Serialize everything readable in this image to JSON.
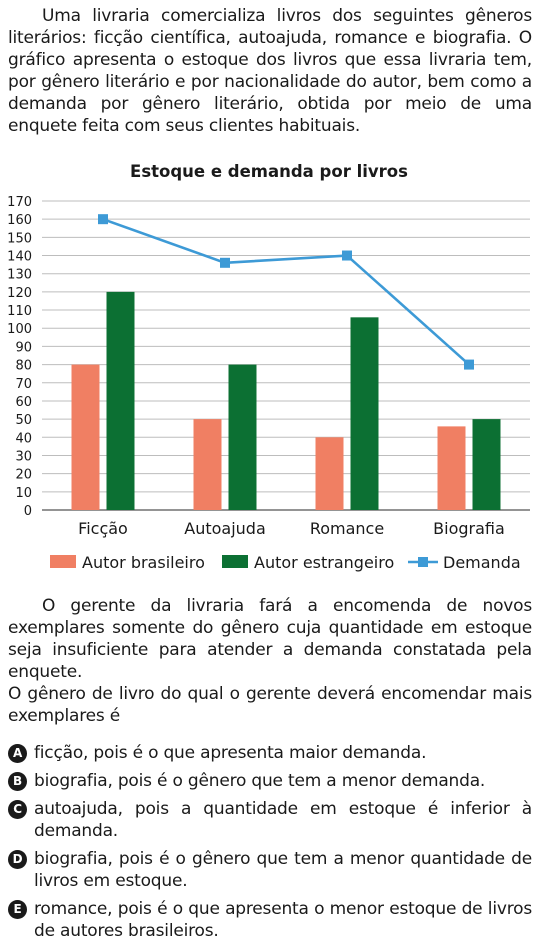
{
  "intro": "Uma livraria comercializa livros dos seguintes gêneros literários: ficção científica, autoajuda, romance e biografia. O gráfico apresenta o estoque dos livros que essa livraria tem, por gênero literário e por nacionalidade do autor, bem como a demanda por gênero literário, obtida por meio de uma enquete feita com seus clientes habituais.",
  "paragraph2": "O gerente da livraria fará a encomenda de novos exemplares somente do gênero cuja quantidade em estoque seja insuficiente para atender a demanda constatada pela enquete.",
  "question": "O gênero de livro do qual o gerente deverá encomendar mais exemplares é",
  "options": [
    {
      "letter": "A",
      "text": "ficção, pois é o que apresenta maior demanda."
    },
    {
      "letter": "B",
      "text": "biografia, pois é o gênero que tem a menor demanda."
    },
    {
      "letter": "C",
      "text": "autoajuda, pois a quantidade em estoque é inferior à demanda."
    },
    {
      "letter": "D",
      "text": "biografia, pois é o gênero que tem a menor quantidade de livros em estoque."
    },
    {
      "letter": "E",
      "text": "romance, pois é o que apresenta o menor estoque de livros de autores brasileiros."
    }
  ],
  "chart_data": {
    "type": "bar",
    "title": "Estoque e demanda por livros",
    "categories": [
      "Ficção",
      "Autoajuda",
      "Romance",
      "Biografia"
    ],
    "series": [
      {
        "name": "Autor brasileiro",
        "kind": "bar",
        "color": "#f07f63",
        "values": [
          80,
          50,
          40,
          46
        ]
      },
      {
        "name": "Autor estrangeiro",
        "kind": "bar",
        "color": "#0c7033",
        "values": [
          120,
          80,
          106,
          50
        ]
      },
      {
        "name": "Demanda",
        "kind": "line",
        "color": "#3d9ad6",
        "values": [
          160,
          136,
          140,
          80
        ]
      }
    ],
    "yticks": [
      0,
      10,
      20,
      30,
      40,
      50,
      60,
      70,
      80,
      90,
      100,
      110,
      120,
      130,
      140,
      150,
      160,
      170
    ],
    "ylim": [
      0,
      170
    ],
    "grid": true,
    "legend_position": "bottom"
  }
}
